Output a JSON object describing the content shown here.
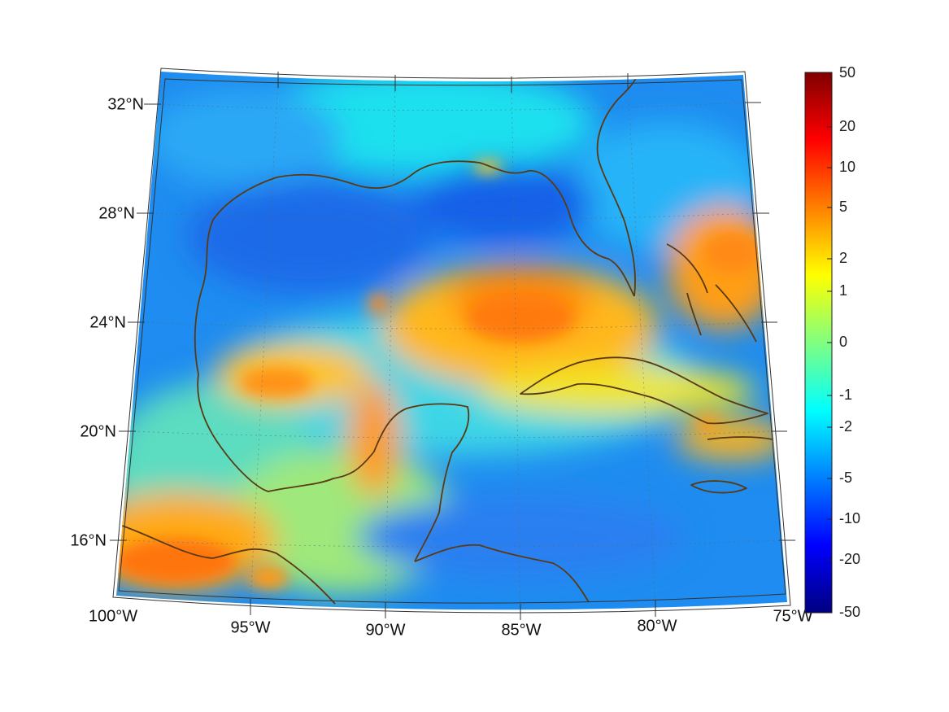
{
  "map": {
    "projection": "conic",
    "lon_labels": [
      "100°W",
      "95°W",
      "90°W",
      "85°W",
      "80°W",
      "75°W"
    ],
    "lat_labels": [
      "32°N",
      "28°N",
      "24°N",
      "20°N",
      "16°N"
    ],
    "coastline_color": "#5a3a12",
    "graticule": "dotted"
  },
  "colorbar": {
    "colormap": "jet",
    "tick_labels": [
      "50",
      "20",
      "10",
      "5",
      "2",
      "1",
      "0",
      "-1",
      "-2",
      "-5",
      "-10",
      "-20",
      "-50"
    ],
    "colors": [
      "#800000",
      "#ff0000",
      "#ff8000",
      "#ffff00",
      "#80ff80",
      "#00ffff",
      "#0080ff",
      "#0000ff",
      "#000080"
    ]
  }
}
